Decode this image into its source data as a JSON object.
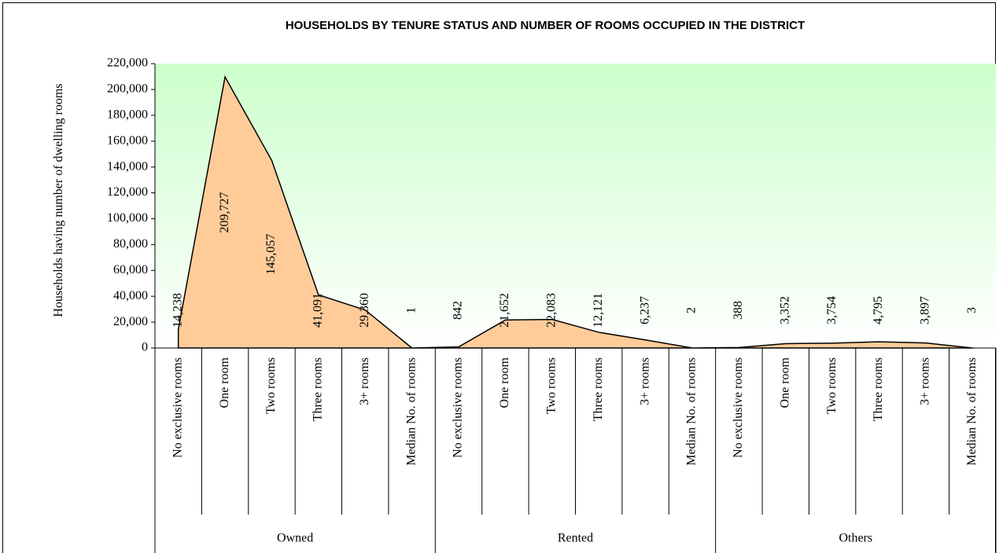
{
  "chart_data": {
    "type": "area",
    "title": "HOUSEHOLDS BY TENURE STATUS AND NUMBER OF ROOMS OCCUPIED IN THE DISTRICT",
    "y_label": "Households having number of dwelling rooms",
    "groups": [
      {
        "name": "Owned",
        "categories": [
          "No exclusive rooms",
          "One room",
          "Two rooms",
          "Three rooms",
          "3+ rooms",
          "Median No. of rooms"
        ]
      },
      {
        "name": "Rented",
        "categories": [
          "No exclusive rooms",
          "One room",
          "Two rooms",
          "Three rooms",
          "3+ rooms",
          "Median No. of rooms"
        ]
      },
      {
        "name": "Others",
        "categories": [
          "No exclusive rooms",
          "One room",
          "Two rooms",
          "Three rooms",
          "3+ rooms",
          "Median No. of rooms"
        ]
      }
    ],
    "values": [
      14238,
      209727,
      145057,
      41091,
      29360,
      1,
      842,
      21652,
      22083,
      12121,
      6237,
      2,
      388,
      3352,
      3754,
      4795,
      3897,
      3
    ],
    "value_labels": [
      "14,238",
      "209,727",
      "145,057",
      "41,091",
      "29,360",
      "1",
      "842",
      "21,652",
      "22,083",
      "12,121",
      "6,237",
      "2",
      "388",
      "3,352",
      "3,754",
      "4,795",
      "3,897",
      "3"
    ],
    "color": "#ffcc99",
    "ylim": [
      0,
      220000
    ],
    "yticks": [
      0,
      {
        "value": 20000,
        "label": "20,000"
      },
      {
        "value": 40000,
        "label": "40,000"
      },
      {
        "value": 60000,
        "label": "60,000"
      },
      {
        "value": 80000,
        "label": "80,000"
      },
      {
        "value": 100000,
        "label": "100,000"
      },
      {
        "value": 120000,
        "label": "120,000"
      },
      {
        "value": 140000,
        "label": "140,000"
      },
      {
        "value": 160000,
        "label": "160,000"
      },
      {
        "value": 180000,
        "label": "180,000"
      },
      {
        "value": 200000,
        "label": "200,000"
      },
      {
        "value": 220000,
        "label": "220,000"
      }
    ]
  }
}
